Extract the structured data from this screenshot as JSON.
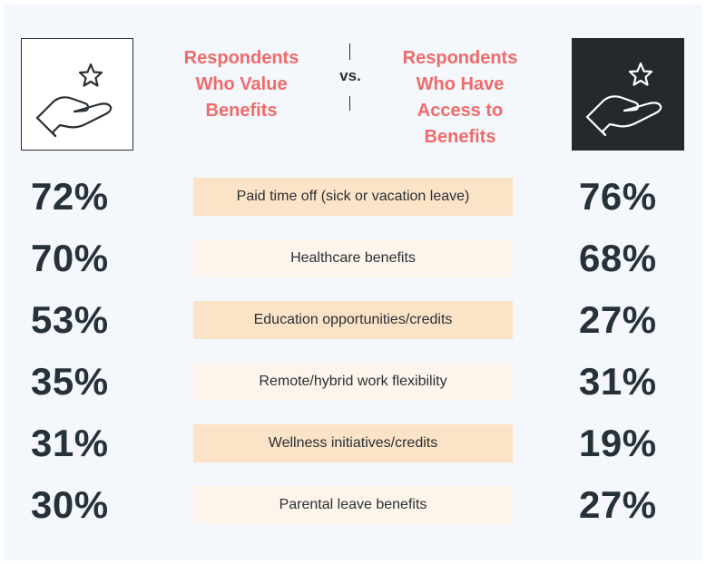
{
  "headers": {
    "left": [
      "Respondents",
      "Who Value",
      "Benefits"
    ],
    "vs": "vs.",
    "right": [
      "Respondents",
      "Who Have",
      "Access to",
      "Benefits"
    ]
  },
  "icons": {
    "left": "hand-star-icon",
    "right": "hand-star-icon"
  },
  "colors": {
    "header": "#ef6b6b",
    "label_dark": "#fbe3c8",
    "label_light": "#fdf5ec",
    "text": "#263238"
  },
  "chart_data": {
    "type": "table",
    "rows": [
      {
        "label": "Paid time off (sick or vacation leave)",
        "value_left": "72%",
        "value_right": "76%"
      },
      {
        "label": "Healthcare benefits",
        "value_left": "70%",
        "value_right": "68%"
      },
      {
        "label": "Education opportunities/credits",
        "value_left": "53%",
        "value_right": "27%"
      },
      {
        "label": "Remote/hybrid work flexibility",
        "value_left": "35%",
        "value_right": "31%"
      },
      {
        "label": "Wellness initiatives/credits",
        "value_left": "31%",
        "value_right": "19%"
      },
      {
        "label": "Parental leave benefits",
        "value_left": "30%",
        "value_right": "27%"
      }
    ]
  }
}
